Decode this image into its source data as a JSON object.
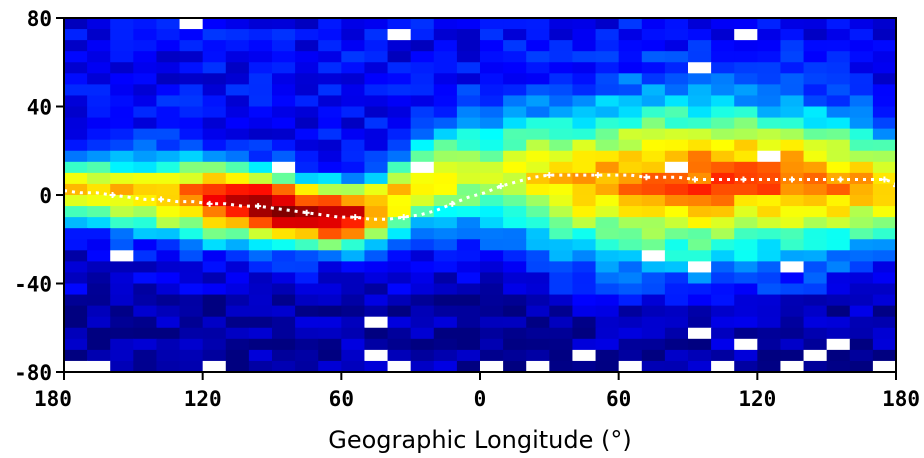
{
  "chart_data": {
    "type": "heatmap",
    "title": "",
    "xlabel": "Geographic Longitude (°)",
    "ylabel": "",
    "xlim": [
      -180,
      180
    ],
    "ylim": [
      -80,
      80
    ],
    "x_tick_labels": [
      "180",
      "120",
      "60",
      "0",
      "60",
      "120",
      "180"
    ],
    "x_tick_values": [
      -180,
      -120,
      -60,
      0,
      60,
      120,
      180
    ],
    "y_tick_labels": [
      "80",
      "40",
      "0",
      "-40",
      "-80"
    ],
    "y_tick_values": [
      80,
      40,
      0,
      -40,
      -80
    ],
    "grid": false,
    "colormap": "jet",
    "bin_size_deg": {
      "lon": 10,
      "lat": 5
    },
    "heatmap_rows_lat_centers": [
      77.5,
      72.5,
      67.5,
      62.5,
      57.5,
      52.5,
      47.5,
      42.5,
      37.5,
      32.5,
      27.5,
      22.5,
      17.5,
      12.5,
      7.5,
      2.5,
      -2.5,
      -7.5,
      -12.5,
      -17.5,
      -22.5,
      -27.5,
      -32.5,
      -37.5,
      -42.5,
      -47.5,
      -52.5,
      -57.5,
      -62.5,
      -67.5,
      -72.5,
      -77.5
    ],
    "heatmap_profile_lat_centers": [
      -175,
      -165,
      -155,
      -145,
      -135,
      -125,
      -115,
      -105,
      -95,
      -85,
      -75,
      -65,
      -55,
      -45,
      -35,
      -25,
      -15,
      -5,
      5,
      15,
      25,
      35,
      45,
      55,
      65,
      75,
      85,
      95,
      105,
      115,
      125,
      135,
      145,
      155,
      165,
      175
    ],
    "profile_center_lat": [
      2,
      1,
      0,
      -1,
      -2,
      -2,
      -3,
      -4,
      -5,
      -7,
      -9,
      -10,
      -10,
      -7,
      -2,
      4,
      7,
      8,
      8,
      8,
      7,
      6,
      5,
      5,
      5,
      5,
      5,
      5,
      5,
      5,
      5,
      5,
      4,
      4,
      3,
      2
    ],
    "profile_peak_intensity": [
      0.55,
      0.55,
      0.56,
      0.58,
      0.62,
      0.68,
      0.76,
      0.85,
      0.92,
      0.95,
      0.93,
      0.9,
      0.82,
      0.68,
      0.58,
      0.55,
      0.5,
      0.45,
      0.45,
      0.48,
      0.52,
      0.55,
      0.58,
      0.6,
      0.62,
      0.64,
      0.66,
      0.67,
      0.67,
      0.66,
      0.65,
      0.64,
      0.63,
      0.62,
      0.6,
      0.58
    ],
    "profile_width_deg": [
      14,
      15,
      16,
      16,
      17,
      17,
      17,
      16,
      15,
      15,
      14,
      14,
      14,
      15,
      17,
      20,
      22,
      24,
      25,
      27,
      29,
      31,
      32,
      33,
      34,
      35,
      35,
      35,
      34,
      33,
      32,
      31,
      30,
      28,
      26,
      24
    ],
    "background_intensity": {
      "north": 0.12,
      "south": 0.08,
      "south_high_lat": 0.04
    },
    "missing_bins": [
      [
        -125,
        77.5
      ],
      [
        -35,
        72.5
      ],
      [
        115,
        72.5
      ],
      [
        95,
        57.5
      ],
      [
        125,
        17.5
      ],
      [
        -155,
        -27.5
      ],
      [
        -85,
        12.5
      ],
      [
        -25,
        12.5
      ],
      [
        -45,
        -57.5
      ],
      [
        75,
        -27.5
      ],
      [
        95,
        -32.5
      ],
      [
        135,
        -32.5
      ],
      [
        115,
        -67.5
      ],
      [
        95,
        -62.5
      ],
      [
        155,
        -67.5
      ],
      [
        -165,
        -77.5
      ],
      [
        -175,
        -77.5
      ],
      [
        25,
        -77.5
      ],
      [
        65,
        -77.5
      ],
      [
        135,
        -77.5
      ],
      [
        -115,
        -77.5
      ],
      [
        -45,
        -72.5
      ],
      [
        85,
        12.5
      ],
      [
        -35,
        -77.5
      ],
      [
        5,
        -77.5
      ],
      [
        45,
        -72.5
      ],
      [
        105,
        -77.5
      ],
      [
        145,
        -72.5
      ],
      [
        175,
        -77.5
      ]
    ],
    "magnetic_equator_lat": [
      2,
      1,
      1,
      0,
      -1,
      -2,
      -2,
      -3,
      -3,
      -4,
      -4,
      -5,
      -5,
      -6,
      -7,
      -8,
      -9,
      -10,
      -10,
      -11,
      -11,
      -10,
      -9,
      -7,
      -4,
      -1,
      1,
      4,
      6,
      8,
      9,
      9,
      9,
      9,
      9,
      9,
      8,
      8,
      8,
      7,
      7,
      7,
      7,
      7,
      7,
      7,
      7,
      7,
      7,
      7,
      7,
      7,
      6,
      5,
      4
    ],
    "magnetic_equator_lon": [
      -180,
      -173,
      -166,
      -159,
      -152,
      -145,
      -138,
      -131,
      -124,
      -117,
      -110,
      -103,
      -96,
      -89,
      -82,
      -75,
      -68,
      -61,
      -54,
      -47,
      -40,
      -33,
      -26,
      -19,
      -12,
      -5,
      2,
      9,
      16,
      23,
      30,
      37,
      44,
      51,
      58,
      65,
      72,
      79,
      86,
      93,
      100,
      107,
      114,
      121,
      128,
      135,
      142,
      149,
      156,
      163,
      170,
      175,
      178,
      180,
      180
    ]
  }
}
